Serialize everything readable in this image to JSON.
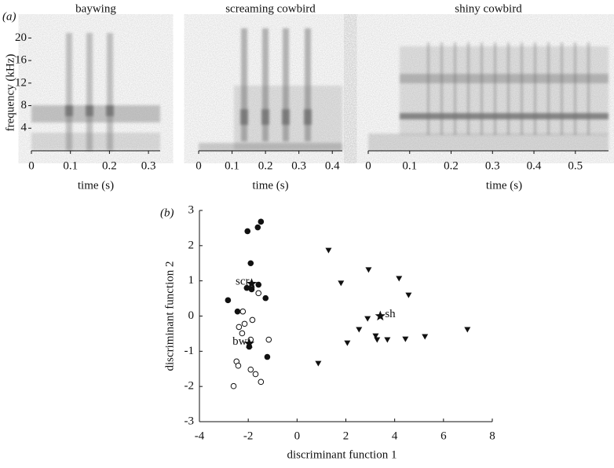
{
  "panel_labels": [
    "(a)",
    "(b)"
  ],
  "chart_data": [
    {
      "type": "spectrogram",
      "title": "baywing",
      "xlabel": "time (s)",
      "ylabel": "frequency (kHz)",
      "xlim": [
        0,
        0.33
      ],
      "xticks": [
        0,
        0.1,
        0.2,
        0.3
      ],
      "ylim": [
        0,
        22
      ],
      "yticks": [
        4,
        8,
        12,
        16,
        20
      ]
    },
    {
      "type": "spectrogram",
      "title": "screaming cowbird",
      "xlabel": "time (s)",
      "xlim": [
        0,
        0.43
      ],
      "xticks": [
        0,
        0.1,
        0.2,
        0.3,
        0.4
      ],
      "ylim": [
        0,
        22
      ]
    },
    {
      "type": "spectrogram",
      "title": "shiny cowbird",
      "xlabel": "time (s)",
      "xlim": [
        0,
        0.58
      ],
      "xticks": [
        0,
        0.1,
        0.2,
        0.3,
        0.4,
        0.5
      ],
      "ylim": [
        0,
        22
      ]
    },
    {
      "type": "scatter",
      "xlabel": "discriminant function 1",
      "ylabel": "discriminant function 2",
      "xlim": [
        -4,
        8
      ],
      "xticks": [
        -4,
        -2,
        0,
        2,
        4,
        6,
        8
      ],
      "ylim": [
        -3,
        3
      ],
      "yticks": [
        -3,
        -2,
        -1,
        0,
        1,
        2,
        3
      ],
      "series": [
        {
          "marker": "filled-circle",
          "color": "#111111",
          "x": [
            -1.48,
            -1.61,
            -2.03,
            -1.9,
            -1.58,
            -2.06,
            -1.86,
            -1.29,
            -2.83,
            -2.44,
            -1.96,
            -1.22
          ],
          "y": [
            2.68,
            2.52,
            2.41,
            1.5,
            0.89,
            0.8,
            0.76,
            0.51,
            0.45,
            0.13,
            -0.87,
            -1.16
          ]
        },
        {
          "marker": "open-circle",
          "color": "#111111",
          "x": [
            -1.58,
            -2.22,
            -1.83,
            -2.15,
            -2.38,
            -1.9,
            -1.16,
            -2.25,
            -2.48,
            -2.41,
            -1.9,
            -1.7,
            -1.48,
            -2.6
          ],
          "y": [
            0.65,
            0.13,
            -0.11,
            -0.22,
            -0.31,
            -0.67,
            -0.67,
            -0.49,
            -1.29,
            -1.41,
            -1.52,
            -1.65,
            -1.87,
            -1.99
          ]
        },
        {
          "marker": "triangle",
          "color": "#111111",
          "x": [
            1.29,
            2.93,
            4.18,
            1.8,
            4.57,
            2.89,
            2.54,
            3.22,
            3.28,
            3.7,
            4.44,
            5.24,
            6.98,
            2.06,
            0.87
          ],
          "y": [
            1.87,
            1.32,
            1.07,
            0.94,
            0.6,
            -0.07,
            -0.38,
            -0.56,
            -0.67,
            -0.67,
            -0.65,
            -0.58,
            -0.38,
            -0.76,
            -1.34
          ]
        },
        {
          "marker": "star",
          "color": "#111111",
          "x": [
            -1.86,
            -1.96,
            3.41
          ],
          "y": [
            0.92,
            -0.78,
            0.0
          ],
          "labels": [
            "scr",
            "bw",
            "sh"
          ]
        }
      ]
    }
  ]
}
